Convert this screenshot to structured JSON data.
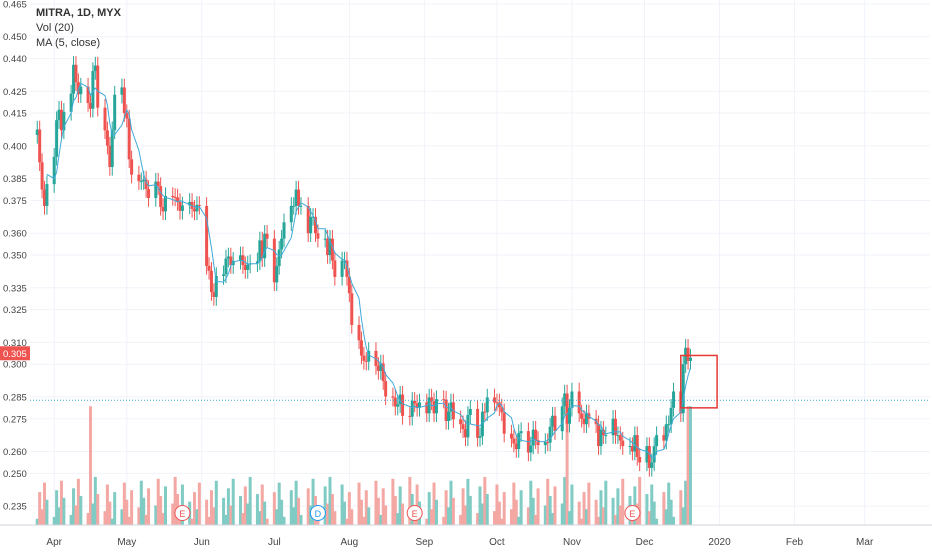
{
  "legend": {
    "symbol": "MITRA, 1D, MYX",
    "volume": "Vol (20)",
    "ma": "MA (5, close)"
  },
  "colors": {
    "up": "#26a69a",
    "down": "#ef5350",
    "up_vol": "#80cbc4",
    "down_vol": "#f4a8a4",
    "ma": "#3fa9d8",
    "hline": "#3fa9d8",
    "grid": "#f0f3fa",
    "axis_text": "#444444",
    "price_badge": "#ef5350",
    "highlight_box": "#e53935",
    "event_E": "#ef5350",
    "event_D": "#2196f3"
  },
  "chart_data": {
    "type": "candlestick",
    "y_ticks": [
      "0.235",
      "0.250",
      "0.260",
      "0.275",
      "0.285",
      "0.300",
      "0.310",
      "0.325",
      "0.335",
      "0.350",
      "0.360",
      "0.375",
      "0.385",
      "0.400",
      "0.415",
      "0.425",
      "0.440",
      "0.450",
      "0.465"
    ],
    "ylim": [
      0.23,
      0.465
    ],
    "x_ticks": [
      "Apr",
      "May",
      "Jun",
      "Jul",
      "Aug",
      "Sep",
      "Oct",
      "Nov",
      "Dec",
      "2020",
      "Feb",
      "Mar"
    ],
    "last_price": "0.305",
    "horizontal_line": 0.2835,
    "events": [
      {
        "label": "E",
        "month": "May"
      },
      {
        "label": "D",
        "month": "Jul"
      },
      {
        "label": "E",
        "month": "Aug"
      },
      {
        "label": "E",
        "month": "Nov"
      }
    ],
    "highlight_box": {
      "from": "2019-12-16",
      "to": "2019-12-31",
      "price_low": 0.28,
      "price_high": 0.304
    },
    "segments": [
      {
        "from": "2019-03-25",
        "to": "2019-03-29",
        "values": [
          0.405,
          0.395,
          0.38,
          0.37,
          0.385
        ]
      },
      {
        "from": "2019-04-01",
        "to": "2019-04-30",
        "values": [
          0.395,
          0.41,
          0.42,
          0.405,
          0.415,
          0.43,
          0.44,
          0.42,
          0.43,
          0.425,
          0.41,
          0.43,
          0.44,
          0.425,
          0.41,
          0.4,
          0.39,
          0.405,
          0.42,
          0.43,
          0.415
        ]
      },
      {
        "from": "2019-05-01",
        "to": "2019-05-31",
        "values": [
          0.41,
          0.395,
          0.385,
          0.38,
          0.39,
          0.38,
          0.375,
          0.385,
          0.38,
          0.375,
          0.37,
          0.375,
          0.38,
          0.375,
          0.37,
          0.375,
          0.37,
          0.375,
          0.37,
          0.37,
          0.375
        ]
      },
      {
        "from": "2019-06-03",
        "to": "2019-06-28",
        "values": [
          0.345,
          0.34,
          0.335,
          0.33,
          0.34,
          0.345,
          0.35,
          0.345,
          0.35,
          0.345,
          0.35,
          0.345,
          0.34,
          0.35,
          0.345,
          0.355,
          0.35,
          0.36,
          0.355
        ]
      },
      {
        "from": "2019-07-01",
        "to": "2019-07-31",
        "values": [
          0.34,
          0.345,
          0.35,
          0.36,
          0.365,
          0.37,
          0.375,
          0.38,
          0.37,
          0.375,
          0.36,
          0.365,
          0.37,
          0.36,
          0.355,
          0.36,
          0.35,
          0.355,
          0.35,
          0.34,
          0.345,
          0.35,
          0.34
        ]
      },
      {
        "from": "2019-08-01",
        "to": "2019-08-30",
        "values": [
          0.33,
          0.32,
          0.31,
          0.3,
          0.305,
          0.3,
          0.305,
          0.3,
          0.295,
          0.3,
          0.29,
          0.28,
          0.285,
          0.28,
          0.285,
          0.28,
          0.275,
          0.28,
          0.285,
          0.28,
          0.28
        ]
      },
      {
        "from": "2019-09-02",
        "to": "2019-09-30",
        "values": [
          0.28,
          0.285,
          0.28,
          0.28,
          0.285,
          0.28,
          0.275,
          0.28,
          0.28,
          0.275,
          0.27,
          0.265,
          0.275,
          0.28,
          0.27,
          0.265,
          0.275,
          0.28,
          0.285,
          0.28
        ]
      },
      {
        "from": "2019-10-01",
        "to": "2019-10-31",
        "values": [
          0.285,
          0.28,
          0.275,
          0.27,
          0.265,
          0.26,
          0.265,
          0.27,
          0.265,
          0.26,
          0.265,
          0.27,
          0.265,
          0.26,
          0.265,
          0.27,
          0.275,
          0.27,
          0.28,
          0.285,
          0.275,
          0.28
        ]
      },
      {
        "from": "2019-11-01",
        "to": "2019-11-29",
        "values": [
          0.285,
          0.28,
          0.275,
          0.27,
          0.28,
          0.275,
          0.27,
          0.265,
          0.27,
          0.265,
          0.27,
          0.275,
          0.265,
          0.27,
          0.265,
          0.26,
          0.265,
          0.26,
          0.265,
          0.26,
          0.255
        ]
      },
      {
        "from": "2019-12-02",
        "to": "2019-12-20",
        "values": [
          0.26,
          0.255,
          0.255,
          0.26,
          0.27,
          0.265,
          0.27,
          0.275,
          0.28,
          0.285,
          0.28,
          0.3,
          0.305,
          0.304,
          0.303
        ]
      }
    ],
    "volume": {
      "ylim": [
        0,
        1.0
      ],
      "min_height_share": 0.05,
      "spike_dates": [
        "2019-04-16",
        "2019-10-30",
        "2019-12-19",
        "2019-12-20"
      ]
    }
  }
}
